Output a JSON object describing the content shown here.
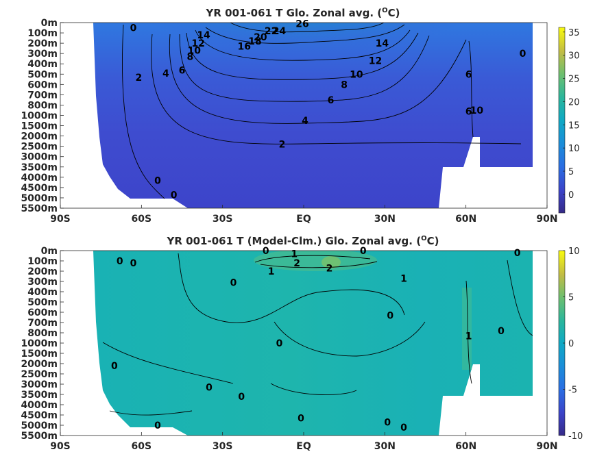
{
  "chart_data": [
    {
      "type": "heatmap",
      "title_parts": [
        "YR 001-061 T Glo. Zonal avg. (",
        "O",
        "C)"
      ],
      "x_ticks": [
        "90S",
        "60S",
        "30S",
        "EQ",
        "30N",
        "60N",
        "90N"
      ],
      "x_range": [
        -90,
        90
      ],
      "y_ticks": [
        "0m",
        "100m",
        "200m",
        "300m",
        "400m",
        "500m",
        "600m",
        "700m",
        "800m",
        "1000m",
        "1500m",
        "2000m",
        "2500m",
        "3000m",
        "3500m",
        "4000m",
        "4500m",
        "5000m",
        "5500m"
      ],
      "colorbar": {
        "range": [
          -4,
          36
        ],
        "ticks": [
          0,
          5,
          10,
          15,
          20,
          25,
          30,
          35
        ]
      },
      "contour_labels": [
        {
          "text": "26",
          "lat": -0.5,
          "level": 0.1
        },
        {
          "text": "24",
          "lat": -9,
          "level": 0.8
        },
        {
          "text": "22",
          "lat": -12,
          "level": 0.8
        },
        {
          "text": "20",
          "lat": -16,
          "level": 1.4
        },
        {
          "text": "18",
          "lat": -18,
          "level": 1.8
        },
        {
          "text": "16",
          "lat": -22,
          "level": 2.3
        },
        {
          "text": "14",
          "lat": -37,
          "level": 1.2
        },
        {
          "text": "12",
          "lat": -39,
          "level": 2.0
        },
        {
          "text": "10",
          "lat": -40.5,
          "level": 2.7
        },
        {
          "text": "8",
          "lat": -42,
          "level": 3.3
        },
        {
          "text": "6",
          "lat": -45,
          "level": 4.6
        },
        {
          "text": "4",
          "lat": -51,
          "level": 4.9
        },
        {
          "text": "2",
          "lat": -61,
          "level": 5.3
        },
        {
          "text": "0",
          "lat": -63,
          "level": 0.5
        },
        {
          "text": "14",
          "lat": 29,
          "level": 2.0
        },
        {
          "text": "12",
          "lat": 26.5,
          "level": 3.7
        },
        {
          "text": "10",
          "lat": 19.5,
          "level": 5.0
        },
        {
          "text": "8",
          "lat": 15,
          "level": 6.0
        },
        {
          "text": "6",
          "lat": 10,
          "level": 7.5
        },
        {
          "text": "4",
          "lat": 0.5,
          "level": 9.5
        },
        {
          "text": "2",
          "lat": -8,
          "level": 11.8
        },
        {
          "text": "6",
          "lat": 61,
          "level": 5.0
        },
        {
          "text": "6",
          "lat": 61,
          "level": 8.6
        },
        {
          "text": "10",
          "lat": 64,
          "level": 8.5
        },
        {
          "text": "0",
          "lat": 81,
          "level": 3.0
        },
        {
          "text": "0",
          "lat": -54,
          "level": 15.3
        },
        {
          "text": "0",
          "lat": -48,
          "level": 16.7
        }
      ]
    },
    {
      "type": "heatmap",
      "title_parts": [
        "YR 001-061 T (Model-Clm.) Glo. Zonal avg. (",
        "O",
        "C)"
      ],
      "x_ticks": [
        "90S",
        "60S",
        "30S",
        "EQ",
        "30N",
        "60N",
        "90N"
      ],
      "x_range": [
        -90,
        90
      ],
      "y_ticks": [
        "0m",
        "100m",
        "200m",
        "300m",
        "400m",
        "500m",
        "600m",
        "700m",
        "800m",
        "1000m",
        "1500m",
        "2000m",
        "2500m",
        "3000m",
        "3500m",
        "4000m",
        "4500m",
        "5000m",
        "5500m"
      ],
      "colorbar": {
        "range": [
          -10,
          10
        ],
        "ticks": [
          10,
          5,
          0,
          -5,
          -10
        ]
      },
      "contour_labels": [
        {
          "text": "0",
          "lat": -68,
          "level": 1.0
        },
        {
          "text": "0",
          "lat": -63,
          "level": 1.2
        },
        {
          "text": "0",
          "lat": -14,
          "level": 0.0
        },
        {
          "text": "1",
          "lat": -3.5,
          "level": 0.3
        },
        {
          "text": "0",
          "lat": 22,
          "level": 0.0
        },
        {
          "text": "2",
          "lat": -2.5,
          "level": 1.2
        },
        {
          "text": "2",
          "lat": 9.5,
          "level": 1.7
        },
        {
          "text": "1",
          "lat": -12,
          "level": 2.0
        },
        {
          "text": "1",
          "lat": 37,
          "level": 2.7
        },
        {
          "text": "0",
          "lat": -26,
          "level": 3.1
        },
        {
          "text": "0",
          "lat": 79,
          "level": 0.2
        },
        {
          "text": "0",
          "lat": 32,
          "level": 6.3
        },
        {
          "text": "0",
          "lat": -9,
          "level": 9.0
        },
        {
          "text": "1",
          "lat": 61,
          "level": 8.3
        },
        {
          "text": "0",
          "lat": 73,
          "level": 7.8
        },
        {
          "text": "0",
          "lat": -70,
          "level": 11.2
        },
        {
          "text": "0",
          "lat": -35,
          "level": 13.3
        },
        {
          "text": "0",
          "lat": -23,
          "level": 14.2
        },
        {
          "text": "0",
          "lat": -1,
          "level": 16.3
        },
        {
          "text": "0",
          "lat": 31,
          "level": 16.7
        },
        {
          "text": "0",
          "lat": 37,
          "level": 17.2
        },
        {
          "text": "0",
          "lat": -54,
          "level": 17.0
        }
      ]
    }
  ]
}
